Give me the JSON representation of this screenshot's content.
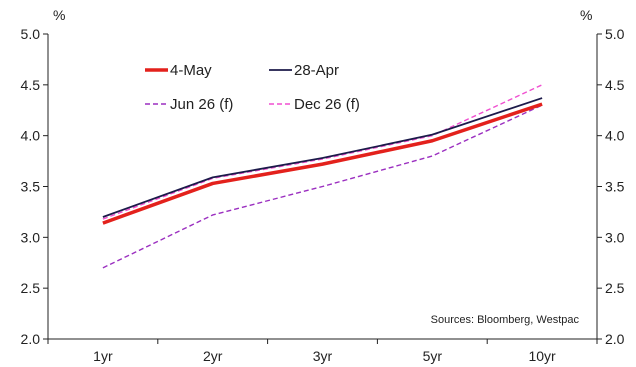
{
  "chart_data": {
    "type": "line",
    "categories": [
      "1yr",
      "2yr",
      "3yr",
      "5yr",
      "10yr"
    ],
    "ylim": [
      2.0,
      5.0
    ],
    "yticks": [
      "2.0",
      "2.5",
      "3.0",
      "3.5",
      "4.0",
      "4.5",
      "5.0"
    ],
    "y_unit_left": "%",
    "y_unit_right": "%",
    "grid": false,
    "legend_position": "top-left",
    "series": [
      {
        "name": "4-May",
        "values": [
          3.14,
          3.53,
          3.72,
          3.95,
          4.31
        ],
        "color": "#e3211c",
        "style": "solid-thick"
      },
      {
        "name": "28-Apr",
        "values": [
          3.2,
          3.59,
          3.78,
          4.01,
          4.37
        ],
        "color": "#1c1a4a",
        "style": "solid"
      },
      {
        "name": "Jun 26 (f)",
        "values": [
          2.7,
          3.22,
          3.5,
          3.8,
          4.3
        ],
        "color": "#9b2fc0",
        "style": "dashed"
      },
      {
        "name": "Dec 26 (f)",
        "values": [
          3.18,
          3.58,
          3.77,
          4.0,
          4.5
        ],
        "color": "#f04fd0",
        "style": "dashed"
      }
    ],
    "annotation": "Sources: Bloomberg, Westpac"
  }
}
